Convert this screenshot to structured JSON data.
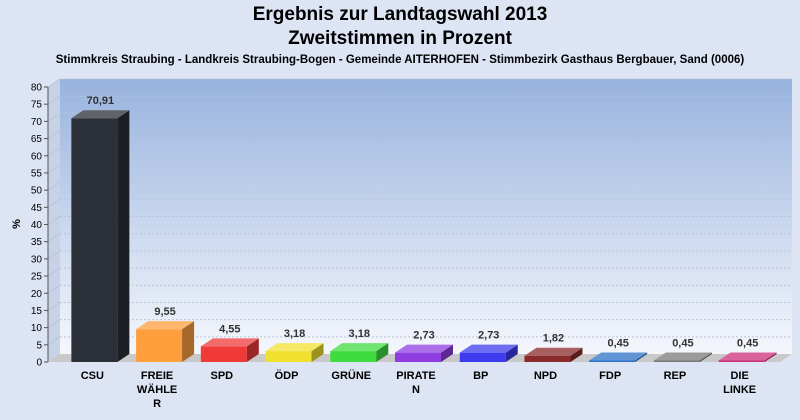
{
  "header": {
    "title": "Ergebnis zur Landtagswahl 2013",
    "title2": "Zweitstimmen in Prozent",
    "subtitle": "Stimmkreis Straubing - Landkreis Straubing-Bogen - Gemeinde AITERHOFEN - Stimmbezirk Gasthaus Bergbauer, Sand (0006)"
  },
  "chart_data": {
    "type": "bar",
    "title": "Ergebnis zur Landtagswahl 2013",
    "subtitle": "Zweitstimmen in Prozent",
    "ylabel": "%",
    "ylim": [
      0,
      80
    ],
    "yticks": [
      0,
      5,
      10,
      15,
      20,
      25,
      30,
      35,
      40,
      45,
      50,
      55,
      60,
      65,
      70,
      75,
      80
    ],
    "grid": true,
    "categories": [
      [
        "CSU"
      ],
      [
        "FREIE",
        "WÄHLE",
        "R"
      ],
      [
        "SPD"
      ],
      [
        "ÖDP"
      ],
      [
        "GRÜNE"
      ],
      [
        "PIRATE",
        "N"
      ],
      [
        "BP"
      ],
      [
        "NPD"
      ],
      [
        "FDP"
      ],
      [
        "REP"
      ],
      [
        "DIE",
        "LINKE"
      ]
    ],
    "values": [
      70.91,
      9.55,
      4.55,
      3.18,
      3.18,
      2.73,
      2.73,
      1.82,
      0.45,
      0.45,
      0.45
    ],
    "value_labels": [
      "70,91",
      "9,55",
      "4,55",
      "3,18",
      "3,18",
      "2,73",
      "2,73",
      "1,82",
      "0,45",
      "0,45",
      "0,45"
    ],
    "colors": [
      "#2b2f38",
      "#ff9e3d",
      "#f03a3a",
      "#f0e030",
      "#3fdc3f",
      "#8f3ce0",
      "#3c3cee",
      "#8a2a2a",
      "#2e72c8",
      "#7a7a7a",
      "#cc2f79"
    ]
  }
}
